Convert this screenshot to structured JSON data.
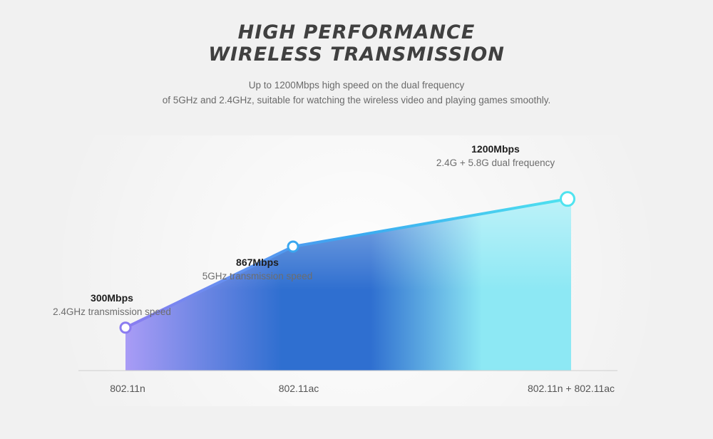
{
  "header": {
    "title_line1": "HIGH PERFORMANCE",
    "title_line2": "WIRELESS TRANSMISSION",
    "subtitle_line1": "Up to 1200Mbps high speed on the dual frequency",
    "subtitle_line2": "of 5GHz and 2.4GHz, suitable for watching the wireless video and playing games smoothly."
  },
  "chart_data": {
    "type": "area",
    "categories": [
      "802.11n",
      "802.11ac",
      "802.11n + 802.11ac"
    ],
    "values": [
      300,
      867,
      1200
    ],
    "value_labels": [
      "300Mbps",
      "867Mbps",
      "1200Mbps"
    ],
    "descriptions": [
      "2.4GHz transmission speed",
      "5GHz transmission speed",
      "2.4G + 5.8G dual frequency"
    ],
    "ylim": [
      0,
      1400
    ],
    "grid": false,
    "legend": "none",
    "colors": {
      "start": "#a99cf6",
      "middle": "#2f6fd0",
      "end": "#8de8f4",
      "line_start": "#8b7cf0",
      "line_mid": "#3aa7f0",
      "line_end": "#4fe3ef"
    }
  }
}
